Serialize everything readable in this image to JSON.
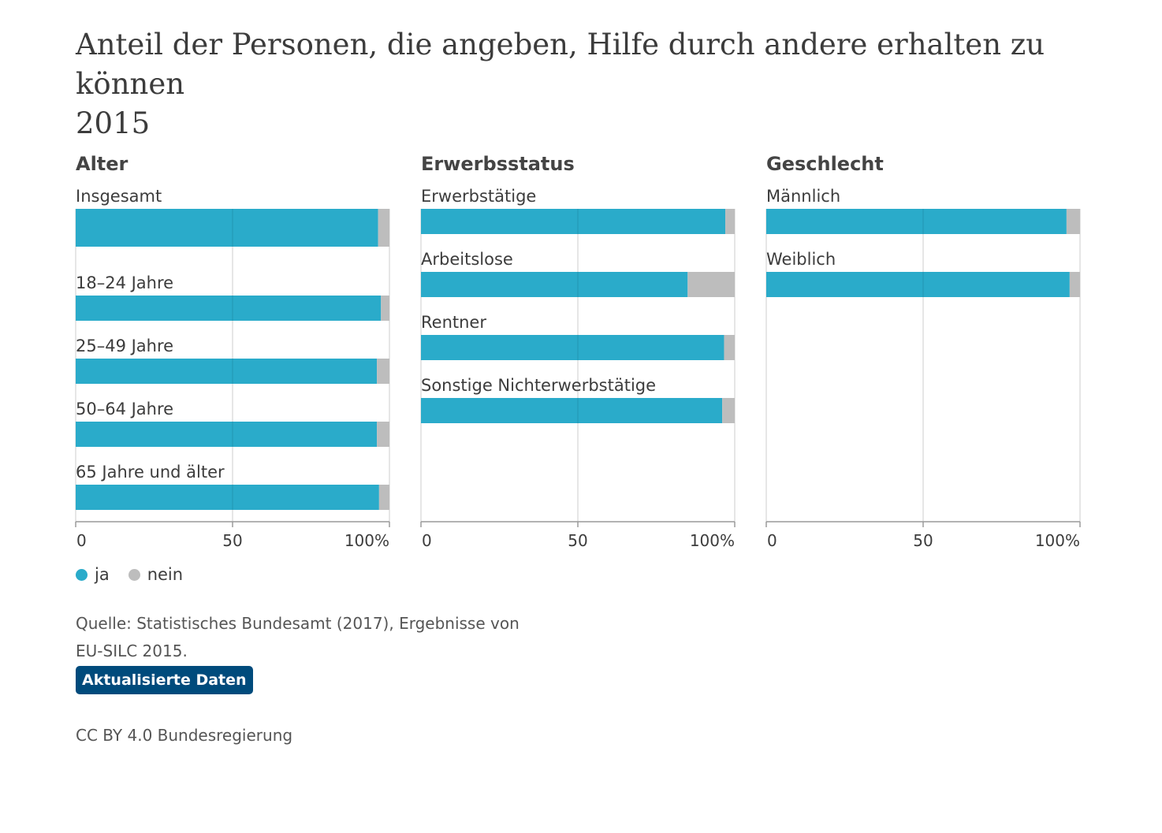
{
  "title": {
    "line1": "Anteil der Personen, die angeben, Hilfe durch andere erhalten zu können",
    "line2": "2015"
  },
  "legend": {
    "ja": "ja",
    "nein": "nein"
  },
  "source": "Quelle: Statistisches Bundesamt (2017), Ergebnisse von EU-SILC 2015.",
  "badge": "Aktualisierte Daten",
  "credit": "CC BY 4.0 Bundesregierung",
  "colors": {
    "ja": "#2aabca",
    "nein": "#bdbdbd",
    "text": "#3c3c3c",
    "grid": "#d6d6d6",
    "axis": "#9a9a9a",
    "badge": "#004b7c"
  },
  "chart_data": [
    {
      "type": "bar",
      "orientation": "horizontal",
      "stacked": true,
      "title": "Alter",
      "categories": [
        "Insgesamt",
        "18–24 Jahre",
        "25–49 Jahre",
        "50–64 Jahre",
        "65 Jahre und älter"
      ],
      "series": [
        {
          "name": "ja",
          "values": [
            96.4,
            97.3,
            96.0,
            96.0,
            96.7
          ]
        },
        {
          "name": "nein",
          "values": [
            3.6,
            2.7,
            4.0,
            4.0,
            3.3
          ]
        }
      ],
      "xticks": [
        "0",
        "50",
        "100%"
      ],
      "xlim": [
        0,
        100
      ],
      "grid": true,
      "legend": "bottom-left"
    },
    {
      "type": "bar",
      "orientation": "horizontal",
      "stacked": true,
      "title": "Erwerbsstatus",
      "categories": [
        "Erwerbstätige",
        "Arbeitslose",
        "Rentner",
        "Sonstige Nichterwerbstätige"
      ],
      "series": [
        {
          "name": "ja",
          "values": [
            97.0,
            85.0,
            96.6,
            96.0
          ]
        },
        {
          "name": "nein",
          "values": [
            3.0,
            15.0,
            3.4,
            4.0
          ]
        }
      ],
      "xticks": [
        "0",
        "50",
        "100%"
      ],
      "xlim": [
        0,
        100
      ],
      "grid": true
    },
    {
      "type": "bar",
      "orientation": "horizontal",
      "stacked": true,
      "title": "Geschlecht",
      "categories": [
        "Männlich",
        "Weiblich"
      ],
      "series": [
        {
          "name": "ja",
          "values": [
            95.7,
            96.7
          ]
        },
        {
          "name": "nein",
          "values": [
            4.3,
            3.3
          ]
        }
      ],
      "xticks": [
        "0",
        "50",
        "100%"
      ],
      "xlim": [
        0,
        100
      ],
      "grid": true
    }
  ]
}
